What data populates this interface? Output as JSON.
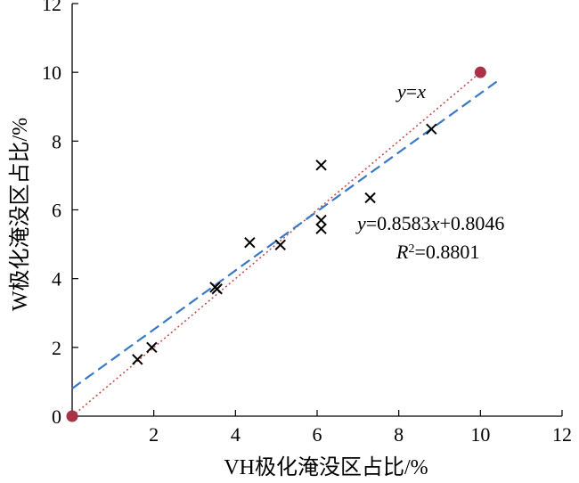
{
  "chart_data": {
    "type": "scatter",
    "xlabel": "VH极化淹没区占比/%",
    "ylabel": "W极化淹没区占比/%",
    "xlim": [
      0,
      12
    ],
    "ylim": [
      0,
      12
    ],
    "x_ticks": [
      "2",
      "4",
      "6",
      "8",
      "10",
      "12"
    ],
    "y_ticks": [
      "0",
      "2",
      "4",
      "6",
      "8",
      "10",
      "12"
    ],
    "grid": false,
    "series": [
      {
        "marker": "x",
        "color": "#000000",
        "points": [
          {
            "x": 1.6,
            "y": 1.65
          },
          {
            "x": 1.95,
            "y": 2.0
          },
          {
            "x": 3.5,
            "y": 3.75
          },
          {
            "x": 3.55,
            "y": 3.7
          },
          {
            "x": 4.35,
            "y": 5.05
          },
          {
            "x": 5.1,
            "y": 4.98
          },
          {
            "x": 6.1,
            "y": 7.3
          },
          {
            "x": 6.1,
            "y": 5.7
          },
          {
            "x": 6.1,
            "y": 5.45
          },
          {
            "x": 7.3,
            "y": 6.35
          },
          {
            "x": 8.8,
            "y": 8.35
          }
        ]
      }
    ],
    "lines": [
      {
        "label": "y=x",
        "slope": 1,
        "intercept": 0,
        "color": "#c0504d",
        "style": "dotted",
        "endpoints_marked": true,
        "x_range": [
          0,
          10
        ]
      },
      {
        "label": "y=0.8583x+0.8046",
        "slope": 0.8583,
        "intercept": 0.8046,
        "color": "#3b78c4",
        "style": "dashed",
        "x_range": [
          0,
          10.5
        ]
      }
    ],
    "endpoint_color": "#a83246",
    "annotations": {
      "yx": {
        "y": "y",
        "eq": "=",
        "x": "x"
      },
      "fit": {
        "y": "y",
        "rest": "=0.8583",
        "x": "x",
        "tail": "+0.8046"
      },
      "r2": {
        "R": "R",
        "sup": "2",
        "tail": "=0.8801"
      }
    }
  }
}
